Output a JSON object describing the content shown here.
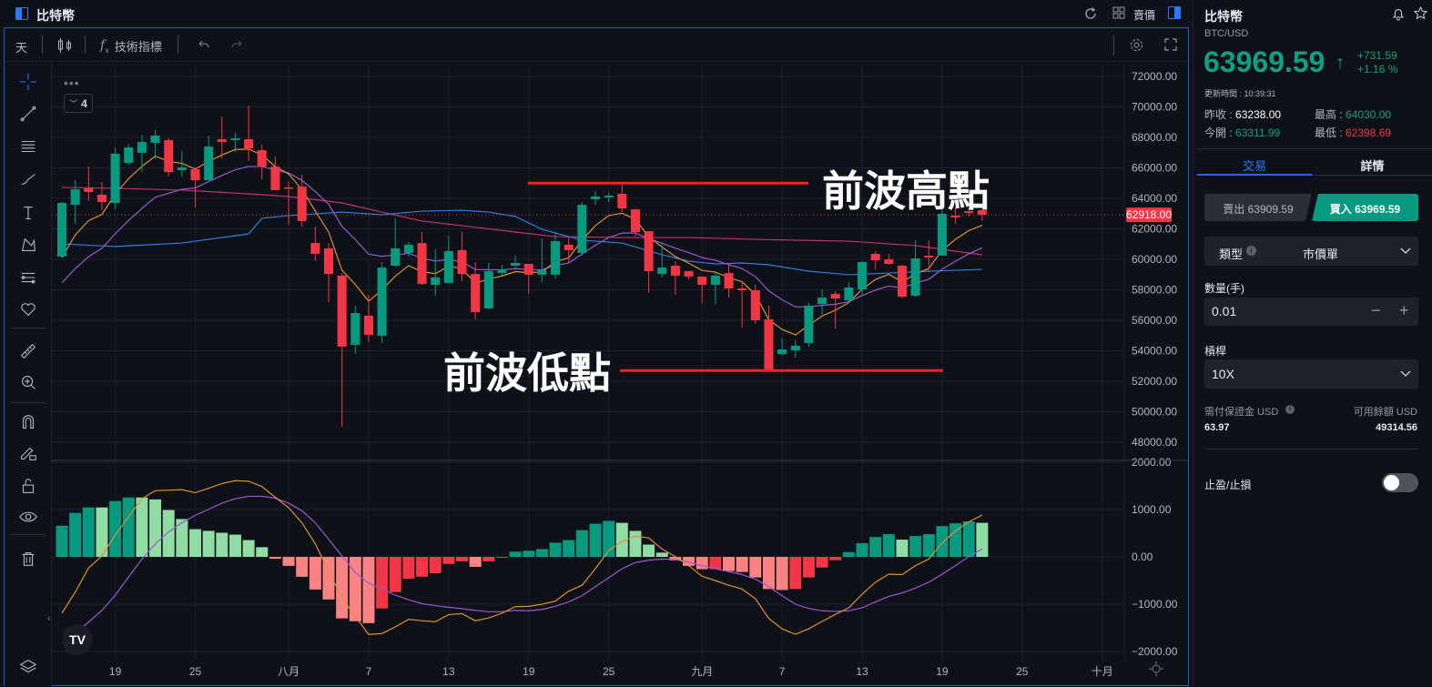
{
  "header": {
    "title": "比特幣",
    "price_type": "賣價",
    "icons": [
      "panel-icon",
      "refresh-icon",
      "grid-icon",
      "panel-toggle-icon"
    ]
  },
  "toolbar": {
    "interval": "天",
    "indicators_label": "技術指標",
    "icons": [
      "candlestick-icon",
      "fx-icon",
      "undo-icon",
      "redo-icon",
      "settings-icon",
      "fullscreen-icon"
    ]
  },
  "legend": {
    "collapse_count": "4"
  },
  "left_tools": [
    "crosshair-icon",
    "trend-line-icon",
    "horizontal-lines-icon",
    "brush-icon",
    "text-icon",
    "pattern-icon",
    "forecast-icon",
    "heart-icon",
    "ruler-icon",
    "zoom-in-icon",
    "magnet-icon",
    "lock-drawing-icon",
    "unlock-icon",
    "eye-icon",
    "trash-icon",
    "layers-icon"
  ],
  "colors": {
    "up": "#089981",
    "down": "#f23645",
    "up_light": "#8fdca5",
    "down_light": "#fc8383",
    "ma_fast": "#e0922f",
    "ma_slow": "#9b59d0",
    "ma_blue": "#2f7fe0",
    "ma_pink": "#c2336f",
    "accent": "#2962ff"
  },
  "chart_data": [
    {
      "type": "candlestick",
      "y_ticks": [
        "72000.00",
        "70000.00",
        "68000.00",
        "66000.00",
        "64000.00",
        "62000.00",
        "60000.00",
        "58000.00",
        "56000.00",
        "54000.00",
        "52000.00",
        "50000.00",
        "48000.00"
      ],
      "ylim": [
        48000,
        72000
      ],
      "last_price_label": "62918.00",
      "last_price": 62918,
      "x_ticks": [
        {
          "i": 4,
          "label": "19"
        },
        {
          "i": 10,
          "label": "25"
        },
        {
          "i": 17,
          "label": "八月"
        },
        {
          "i": 23,
          "label": "7"
        },
        {
          "i": 29,
          "label": "13"
        },
        {
          "i": 35,
          "label": "19"
        },
        {
          "i": 41,
          "label": "25"
        },
        {
          "i": 48,
          "label": "九月"
        },
        {
          "i": 54,
          "label": "7"
        },
        {
          "i": 60,
          "label": "13"
        },
        {
          "i": 66,
          "label": "19"
        },
        {
          "i": 72,
          "label": "25"
        },
        {
          "i": 78,
          "label": "十月"
        }
      ],
      "ohlc": [
        [
          60180,
          63760,
          60180,
          63700
        ],
        [
          63580,
          65200,
          62330,
          64600
        ],
        [
          64660,
          66090,
          63820,
          64420
        ],
        [
          64240,
          65070,
          63220,
          63760
        ],
        [
          63700,
          67340,
          63280,
          66930
        ],
        [
          66330,
          67580,
          66210,
          67340
        ],
        [
          66990,
          68180,
          65730,
          67700
        ],
        [
          67640,
          68480,
          66570,
          68120
        ],
        [
          67820,
          67940,
          65430,
          65730
        ],
        [
          65850,
          67100,
          65430,
          66030
        ],
        [
          65910,
          66030,
          63400,
          65190
        ],
        [
          65190,
          68120,
          65190,
          67400
        ],
        [
          67880,
          69370,
          66630,
          67700
        ],
        [
          67820,
          68300,
          67040,
          67940
        ],
        [
          67880,
          70090,
          66450,
          67280
        ],
        [
          67160,
          67520,
          65250,
          66090
        ],
        [
          66090,
          66750,
          64540,
          64540
        ],
        [
          64720,
          65130,
          62270,
          64660
        ],
        [
          64780,
          65550,
          62150,
          62510
        ],
        [
          61070,
          62150,
          59880,
          60360
        ],
        [
          60720,
          61070,
          57190,
          59040
        ],
        [
          58930,
          59100,
          49020,
          54270
        ],
        [
          54390,
          56960,
          53790,
          56480
        ],
        [
          56300,
          57670,
          54570,
          55050
        ],
        [
          54990,
          59820,
          54510,
          59460
        ],
        [
          59580,
          62690,
          59520,
          60720
        ],
        [
          60420,
          61130,
          60180,
          60960
        ],
        [
          61070,
          61790,
          58330,
          58390
        ],
        [
          58330,
          60660,
          57610,
          58810
        ],
        [
          58450,
          61550,
          58450,
          60540
        ],
        [
          60600,
          61790,
          58570,
          59040
        ],
        [
          59040,
          59820,
          56060,
          56540
        ],
        [
          56780,
          59760,
          56720,
          59220
        ],
        [
          59100,
          59640,
          58930,
          59340
        ],
        [
          59580,
          60240,
          59280,
          59760
        ],
        [
          59700,
          59700,
          57730,
          58990
        ],
        [
          58990,
          61370,
          58510,
          59280
        ],
        [
          58990,
          61790,
          58750,
          61190
        ],
        [
          60960,
          61430,
          59760,
          60600
        ],
        [
          60420,
          63760,
          60240,
          63580
        ],
        [
          63940,
          64480,
          63580,
          64120
        ],
        [
          64060,
          64360,
          63760,
          64180
        ],
        [
          64300,
          64900,
          63100,
          63340
        ],
        [
          63280,
          63280,
          61490,
          61790
        ],
        [
          61850,
          61850,
          57790,
          59220
        ],
        [
          59040,
          61130,
          58810,
          59460
        ],
        [
          59580,
          59880,
          57670,
          58930
        ],
        [
          59220,
          59280,
          58690,
          58870
        ],
        [
          58870,
          58870,
          57130,
          58330
        ],
        [
          58330,
          59220,
          57070,
          58930
        ],
        [
          59100,
          59760,
          57490,
          58090
        ],
        [
          58090,
          58450,
          55520,
          57970
        ],
        [
          57970,
          58330,
          55760,
          56000
        ],
        [
          56060,
          56960,
          52720,
          52780
        ],
        [
          53790,
          54810,
          53670,
          54090
        ],
        [
          54030,
          54690,
          53550,
          54330
        ],
        [
          54510,
          57130,
          54270,
          56960
        ],
        [
          57070,
          58030,
          56360,
          57490
        ],
        [
          57730,
          57910,
          55460,
          57430
        ],
        [
          57310,
          58510,
          57130,
          58150
        ],
        [
          58030,
          59880,
          57550,
          59820
        ],
        [
          60360,
          60540,
          59340,
          59940
        ],
        [
          60000,
          60360,
          59640,
          59700
        ],
        [
          59580,
          59640,
          57430,
          57550
        ],
        [
          57610,
          61250,
          57550,
          60060
        ],
        [
          60240,
          61250,
          59160,
          60120
        ],
        [
          60240,
          63400,
          60240,
          62990
        ],
        [
          62870,
          63400,
          62330,
          62750
        ],
        [
          63160,
          63400,
          62810,
          63040
        ],
        [
          63220,
          63280,
          62510,
          62918
        ]
      ],
      "ma_blue": [
        [
          1,
          61010
        ],
        [
          5,
          60840
        ],
        [
          10,
          61070
        ],
        [
          12,
          61310
        ],
        [
          15,
          61670
        ],
        [
          16,
          62690
        ],
        [
          18,
          62870
        ],
        [
          22,
          63100
        ],
        [
          25,
          62930
        ],
        [
          28,
          63160
        ],
        [
          31,
          63220
        ],
        [
          33,
          63100
        ],
        [
          35,
          62810
        ],
        [
          37,
          61970
        ],
        [
          40,
          61250
        ],
        [
          43,
          61070
        ],
        [
          46,
          60300
        ],
        [
          48,
          59880
        ],
        [
          50,
          59700
        ],
        [
          52,
          59760
        ],
        [
          54,
          59640
        ],
        [
          57,
          59220
        ],
        [
          60,
          58990
        ],
        [
          63,
          59100
        ],
        [
          66,
          59220
        ],
        [
          68,
          59280
        ],
        [
          70,
          59340
        ]
      ],
      "ma_pink": [
        [
          1,
          64720
        ],
        [
          5,
          64660
        ],
        [
          10,
          64540
        ],
        [
          15,
          64300
        ],
        [
          18,
          64120
        ],
        [
          22,
          63700
        ],
        [
          25,
          63100
        ],
        [
          28,
          62510
        ],
        [
          31,
          62210
        ],
        [
          35,
          61790
        ],
        [
          38,
          61490
        ],
        [
          43,
          61430
        ],
        [
          48,
          61430
        ],
        [
          53,
          61310
        ],
        [
          60,
          61190
        ],
        [
          65,
          60900
        ],
        [
          70,
          60300
        ]
      ],
      "annotations": [
        {
          "text": "前波高點",
          "price": 65000
        },
        {
          "text": "前波低點",
          "price": 52700
        }
      ]
    },
    {
      "type": "macd",
      "y_ticks": [
        "2000.00",
        "1000.00",
        "0.00",
        "−1000.00",
        "−2000.00"
      ],
      "ylim": [
        -2000,
        2000
      ],
      "histogram": [
        660,
        930,
        1045,
        1045,
        1180,
        1255,
        1255,
        1215,
        990,
        800,
        585,
        550,
        510,
        470,
        355,
        205,
        -40,
        -190,
        -420,
        -690,
        -900,
        -1300,
        -1360,
        -1400,
        -1090,
        -745,
        -460,
        -420,
        -345,
        -150,
        -95,
        -210,
        -95,
        -10,
        110,
        130,
        165,
        300,
        355,
        565,
        700,
        760,
        720,
        550,
        260,
        90,
        -75,
        -190,
        -260,
        -260,
        -300,
        -320,
        -435,
        -680,
        -700,
        -680,
        -435,
        -225,
        -70,
        100,
        290,
        420,
        480,
        365,
        440,
        480,
        650,
        710,
        750,
        720
      ],
      "macd": [
        -1190,
        -745,
        -235,
        20,
        465,
        845,
        1230,
        1400,
        1410,
        1420,
        1355,
        1450,
        1550,
        1610,
        1600,
        1485,
        1260,
        1040,
        720,
        275,
        -300,
        -870,
        -1255,
        -1640,
        -1620,
        -1480,
        -1320,
        -1350,
        -1370,
        -1220,
        -1200,
        -1350,
        -1290,
        -1190,
        -1050,
        -1045,
        -1000,
        -935,
        -725,
        -600,
        -250,
        135,
        325,
        440,
        400,
        165,
        5,
        -185,
        -410,
        -500,
        -600,
        -680,
        -885,
        -1300,
        -1520,
        -1635,
        -1520,
        -1365,
        -1215,
        -1075,
        -790,
        -535,
        -365,
        -375,
        -185,
        -45,
        295,
        550,
        740,
        885
      ],
      "signal": [
        -1795,
        -1605,
        -1380,
        -1130,
        -810,
        -425,
        -45,
        275,
        530,
        720,
        880,
        1005,
        1135,
        1230,
        1280,
        1280,
        1240,
        1135,
        975,
        720,
        370,
        20,
        -330,
        -555,
        -680,
        -810,
        -905,
        -990,
        -1030,
        -1065,
        -1095,
        -1130,
        -1160,
        -1160,
        -1130,
        -1140,
        -1110,
        -1045,
        -950,
        -820,
        -630,
        -440,
        -250,
        -120,
        -70,
        -45,
        -55,
        -110,
        -185,
        -250,
        -310,
        -375,
        -470,
        -630,
        -820,
        -1000,
        -1090,
        -1140,
        -1150,
        -1140,
        -1075,
        -950,
        -835,
        -760,
        -660,
        -535,
        -365,
        -185,
        5,
        165
      ]
    }
  ],
  "right_panel": {
    "title": "比特幣",
    "symbol": "BTC/USD",
    "price": "63969.59",
    "change": "+731.59",
    "change_pct": "+1.16 %",
    "update_time": "更新時間 : 10:39:31",
    "prev_close_label": "昨收 : ",
    "prev_close": "63238.00",
    "high_label": "最高 : ",
    "high": "64030.00",
    "open_label": "今開 : ",
    "open": "63311.99",
    "low_label": "最低 : ",
    "low": "62398.69",
    "tabs": [
      {
        "label": "交易",
        "active": true
      },
      {
        "label": "詳情",
        "active": false
      }
    ],
    "sell_button": "賣出 63909.59",
    "buy_button": "買入 63969.59",
    "type_label": "類型",
    "type_value": "市價單",
    "qty_label": "數量(手)",
    "qty_value": "0.01",
    "leverage_label": "槓桿",
    "leverage_value": "10X",
    "margin_label": "需付保證金 USD",
    "margin_value": "63.97",
    "available_label": "可用餘額 USD",
    "available_value": "49314.56",
    "tp_sl_label": "止盈/止損",
    "tp_sl_enabled": false
  }
}
